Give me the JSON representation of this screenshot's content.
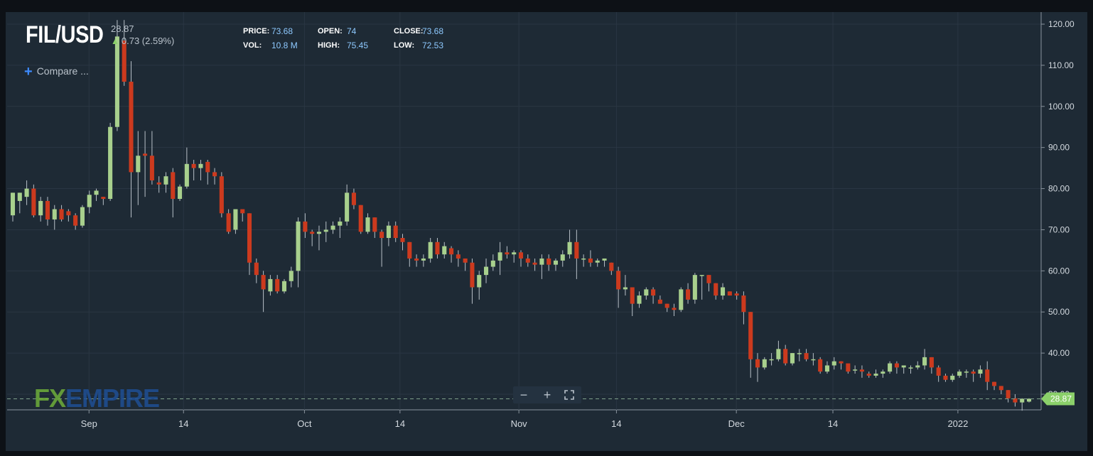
{
  "header": {
    "symbol": "FIL/USD",
    "last_price": "28.87",
    "change": "0.73 (2.59%)",
    "change_direction": "up",
    "change_icon": "arrow-up-icon"
  },
  "stats": {
    "price_label": "PRICE:",
    "price_value": "73.68",
    "open_label": "OPEN:",
    "open_value": "74",
    "close_label": "CLOSE:",
    "close_value": "73.68",
    "vol_label": "VOL:",
    "vol_value": "10.8 M",
    "high_label": "HIGH:",
    "high_value": "75.45",
    "low_label": "LOW:",
    "low_value": "72.53"
  },
  "compare": {
    "label": "Compare ...",
    "icon": "plus-icon"
  },
  "logo": {
    "fx": "FX",
    "empire": "EMPIRE"
  },
  "controls": {
    "zoom_out": "−",
    "zoom_in": "+",
    "fullscreen_icon": "fullscreen-icon"
  },
  "colors": {
    "background": "#1e2a35",
    "up": "#a8d08d",
    "down": "#cc3a1e",
    "wick": "#b8c0c8",
    "grid": "#2a3643",
    "price_marker": "#8bd06a"
  },
  "chart_data": {
    "type": "candlestick",
    "x_ticks": [
      "Sep",
      "14",
      "Oct",
      "14",
      "Nov",
      "14",
      "Dec",
      "14",
      "2022"
    ],
    "y_ticks": [
      "30.00",
      "40.00",
      "50.00",
      "60.00",
      "70.00",
      "80.00",
      "90.00",
      "100.00",
      "110.00",
      "120.00"
    ],
    "ylim": [
      24,
      122
    ],
    "grid": true,
    "current_price": "28.87",
    "candles": [
      [
        73.5,
        79,
        79,
        72
      ],
      [
        77,
        79,
        79,
        74
      ],
      [
        78,
        80,
        82,
        76
      ],
      [
        80,
        73.5,
        81,
        73
      ],
      [
        73.5,
        77,
        78,
        72
      ],
      [
        77,
        72.5,
        78,
        71
      ],
      [
        72.5,
        75,
        76,
        70
      ],
      [
        75,
        72.5,
        76,
        72
      ],
      [
        74.5,
        73.5,
        75,
        72
      ],
      [
        73.5,
        71,
        74,
        70
      ],
      [
        71,
        75.5,
        76,
        70.5
      ],
      [
        75.5,
        78.5,
        79.5,
        74
      ],
      [
        78.5,
        79.5,
        80,
        77
      ],
      [
        78,
        77.5,
        78,
        76
      ],
      [
        77.5,
        95,
        96,
        77
      ],
      [
        95,
        117,
        121,
        94
      ],
      [
        116,
        106,
        121,
        105
      ],
      [
        106,
        84,
        111,
        73
      ],
      [
        84,
        88,
        94,
        76
      ],
      [
        88.5,
        88,
        94,
        78
      ],
      [
        88,
        82,
        94,
        81
      ],
      [
        81.5,
        81,
        83,
        79
      ],
      [
        81,
        83,
        84,
        79
      ],
      [
        84,
        77.5,
        85,
        73
      ],
      [
        77.5,
        80.5,
        81,
        77
      ],
      [
        80.5,
        86,
        90,
        80
      ],
      [
        86,
        85,
        87,
        82
      ],
      [
        85,
        86,
        87,
        82
      ],
      [
        86.5,
        84,
        87,
        81
      ],
      [
        84,
        83,
        85,
        81
      ],
      [
        83,
        74,
        84,
        73
      ],
      [
        74,
        69.5,
        75,
        69
      ],
      [
        70,
        75,
        75,
        69
      ],
      [
        75,
        74,
        75,
        72
      ],
      [
        74,
        62,
        74,
        59
      ],
      [
        62,
        59,
        63,
        57
      ],
      [
        59,
        55.5,
        60,
        50
      ],
      [
        55,
        58,
        59,
        54
      ],
      [
        58,
        55,
        59,
        54.5
      ],
      [
        55,
        57.5,
        58,
        54.5
      ],
      [
        57.5,
        60,
        61,
        56
      ],
      [
        60,
        72,
        73,
        56
      ],
      [
        72,
        69.5,
        74,
        68
      ],
      [
        69.5,
        69,
        70,
        66
      ],
      [
        69,
        69.5,
        71,
        65
      ],
      [
        69.5,
        70,
        72,
        67
      ],
      [
        70,
        71,
        72,
        69
      ],
      [
        71,
        72,
        73,
        68
      ],
      [
        72,
        79,
        81,
        71
      ],
      [
        79,
        76,
        80,
        75
      ],
      [
        76,
        69.5,
        76,
        69
      ],
      [
        69.5,
        73,
        74,
        69
      ],
      [
        73,
        69.5,
        73,
        68
      ],
      [
        69.5,
        68,
        70,
        61
      ],
      [
        68,
        71,
        72,
        66
      ],
      [
        71,
        68,
        72,
        67
      ],
      [
        68,
        67,
        69,
        65
      ],
      [
        67,
        63,
        67,
        61
      ],
      [
        63,
        62.5,
        64,
        61
      ],
      [
        62.5,
        63,
        64,
        61
      ],
      [
        63,
        67,
        68,
        62
      ],
      [
        67,
        64,
        68,
        63
      ],
      [
        64,
        66,
        67,
        63
      ],
      [
        65.5,
        64,
        66,
        62
      ],
      [
        64,
        63,
        65,
        61
      ],
      [
        63,
        62,
        63,
        60
      ],
      [
        62,
        56,
        63,
        52
      ],
      [
        56,
        59,
        60,
        53
      ],
      [
        59,
        61,
        63,
        57
      ],
      [
        61,
        62.5,
        64,
        60
      ],
      [
        62.5,
        64.5,
        67,
        59
      ],
      [
        64.5,
        64,
        66,
        63
      ],
      [
        64,
        64.5,
        65,
        62
      ],
      [
        64.5,
        63,
        65,
        61
      ],
      [
        63,
        62,
        64,
        61
      ],
      [
        62,
        61.5,
        63,
        60
      ],
      [
        61.5,
        63,
        64,
        58
      ],
      [
        63,
        61.5,
        64,
        60
      ],
      [
        61.5,
        62.5,
        63,
        60
      ],
      [
        62.5,
        64,
        65,
        61
      ],
      [
        64,
        67,
        70,
        63
      ],
      [
        67,
        63,
        70,
        58
      ],
      [
        63,
        63,
        64,
        61
      ],
      [
        63,
        62,
        65,
        61
      ],
      [
        62,
        62.5,
        63,
        61
      ],
      [
        62.5,
        63,
        63,
        61
      ],
      [
        62,
        60,
        62,
        59
      ],
      [
        60,
        55.5,
        61,
        51
      ],
      [
        55.5,
        56,
        59,
        54
      ],
      [
        56,
        52,
        56,
        49
      ],
      [
        52,
        54,
        55,
        51
      ],
      [
        54,
        55.5,
        56,
        53
      ],
      [
        55.5,
        54,
        56,
        52
      ],
      [
        53,
        52,
        54,
        52
      ],
      [
        52,
        51,
        52,
        50
      ],
      [
        51,
        50.5,
        52,
        49
      ],
      [
        50.5,
        55.5,
        56,
        50
      ],
      [
        55.5,
        53,
        57,
        52
      ],
      [
        53,
        59,
        59.5,
        52
      ],
      [
        59,
        59,
        59,
        53
      ],
      [
        59,
        57,
        59,
        55
      ],
      [
        57,
        54,
        57,
        53
      ],
      [
        54,
        56,
        57,
        53
      ],
      [
        55,
        54,
        55,
        54
      ],
      [
        54.5,
        54,
        55,
        53
      ],
      [
        54,
        50,
        55,
        47
      ],
      [
        50,
        38.5,
        50,
        34
      ],
      [
        38.5,
        36.5,
        40,
        33
      ],
      [
        36.5,
        38.5,
        39,
        36
      ],
      [
        38.5,
        38.5,
        40,
        37
      ],
      [
        38.5,
        41,
        43,
        38
      ],
      [
        41,
        37.5,
        42,
        37
      ],
      [
        37.5,
        40,
        40,
        37
      ],
      [
        40,
        40,
        41,
        38
      ],
      [
        40,
        38.5,
        41,
        38
      ],
      [
        38.5,
        38.5,
        40,
        37
      ],
      [
        38.5,
        35.5,
        39,
        35
      ],
      [
        35.5,
        37,
        38,
        35
      ],
      [
        37,
        38,
        39,
        36
      ],
      [
        38,
        37.5,
        38,
        36
      ],
      [
        37.5,
        35.5,
        37,
        35
      ],
      [
        36,
        36,
        37,
        35
      ],
      [
        36,
        35.5,
        37,
        34
      ],
      [
        35,
        34.5,
        35.5,
        34
      ],
      [
        34.5,
        35,
        36,
        34
      ],
      [
        35,
        35.5,
        36,
        34
      ],
      [
        35.5,
        37.5,
        38,
        35
      ],
      [
        37.5,
        36.5,
        38,
        35
      ],
      [
        36.5,
        37,
        37,
        35
      ],
      [
        36.5,
        36.5,
        37,
        35
      ],
      [
        36.5,
        37,
        38,
        36
      ],
      [
        37,
        39,
        41,
        36
      ],
      [
        39,
        36.5,
        39,
        35
      ],
      [
        36.5,
        34.5,
        37,
        33
      ],
      [
        34.5,
        33.5,
        35,
        33
      ],
      [
        33.5,
        34.5,
        35,
        33
      ],
      [
        34.5,
        35.5,
        36,
        34
      ],
      [
        35.5,
        35.5,
        36,
        34
      ],
      [
        35.5,
        35,
        36,
        33
      ],
      [
        35,
        36,
        37,
        34
      ],
      [
        36,
        33,
        38,
        31
      ],
      [
        33,
        32,
        33,
        31
      ],
      [
        32,
        31,
        32,
        30
      ],
      [
        31,
        29,
        31,
        28
      ],
      [
        29,
        28,
        30,
        27
      ],
      [
        28,
        28.9,
        29,
        26
      ],
      [
        28.2,
        28.9,
        29,
        28
      ]
    ],
    "candle_fields": [
      "open",
      "close",
      "high",
      "low"
    ]
  }
}
